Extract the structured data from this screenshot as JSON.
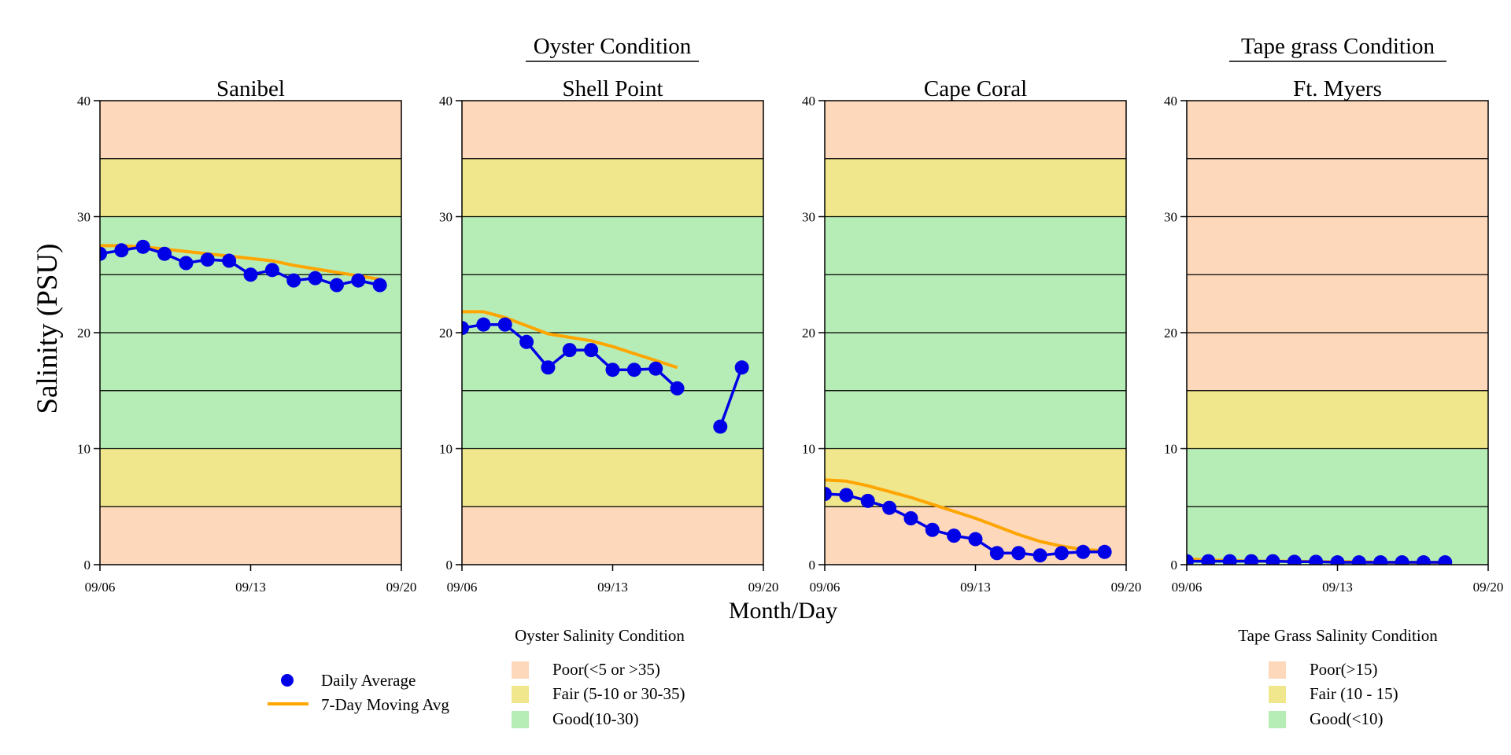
{
  "figure": {
    "ylabel": "Salinity (PSU)",
    "xlabel": "Month/Day",
    "group_titles": {
      "oyster": "Oyster Condition",
      "tape": "Tape grass Condition"
    }
  },
  "colors": {
    "poor": "#fdd8bb",
    "fair": "#f0e68c",
    "good": "#b6edb6",
    "daily": "#0000e6",
    "moving": "#ffa500"
  },
  "chart_data": [
    {
      "type": "line",
      "title": "Sanibel",
      "ylim": [
        0,
        40
      ],
      "yticks": [
        0,
        10,
        20,
        30,
        40
      ],
      "xlim": [
        "09/06",
        "09/20"
      ],
      "xticks": [
        "09/06",
        "09/13",
        "09/20"
      ],
      "bands": [
        {
          "from": 0,
          "to": 5,
          "condition": "poor"
        },
        {
          "from": 5,
          "to": 10,
          "condition": "fair"
        },
        {
          "from": 10,
          "to": 30,
          "condition": "good"
        },
        {
          "from": 30,
          "to": 35,
          "condition": "fair"
        },
        {
          "from": 35,
          "to": 40,
          "condition": "poor"
        }
      ],
      "series": [
        {
          "name": "Daily Average",
          "x": [
            "09/06",
            "09/07",
            "09/08",
            "09/09",
            "09/10",
            "09/11",
            "09/12",
            "09/13",
            "09/14",
            "09/15",
            "09/16",
            "09/17",
            "09/18",
            "09/19"
          ],
          "y": [
            26.8,
            27.1,
            27.4,
            26.8,
            26.0,
            26.3,
            26.2,
            25.0,
            25.4,
            24.5,
            24.7,
            24.1,
            24.5,
            24.1
          ]
        },
        {
          "name": "7-Day Moving Avg",
          "x": [
            "09/06",
            "09/07",
            "09/08",
            "09/09",
            "09/10",
            "09/11",
            "09/12",
            "09/13",
            "09/14",
            "09/15",
            "09/16",
            "09/17",
            "09/18",
            "09/19"
          ],
          "y": [
            27.5,
            27.5,
            27.4,
            27.2,
            27.0,
            26.8,
            26.6,
            26.4,
            26.2,
            25.8,
            25.5,
            25.2,
            24.9,
            24.6
          ]
        }
      ]
    },
    {
      "type": "line",
      "title": "Shell Point",
      "ylim": [
        0,
        40
      ],
      "yticks": [
        0,
        10,
        20,
        30,
        40
      ],
      "xlim": [
        "09/06",
        "09/20"
      ],
      "xticks": [
        "09/06",
        "09/13",
        "09/20"
      ],
      "bands": [
        {
          "from": 0,
          "to": 5,
          "condition": "poor"
        },
        {
          "from": 5,
          "to": 10,
          "condition": "fair"
        },
        {
          "from": 10,
          "to": 30,
          "condition": "good"
        },
        {
          "from": 30,
          "to": 35,
          "condition": "fair"
        },
        {
          "from": 35,
          "to": 40,
          "condition": "poor"
        }
      ],
      "series": [
        {
          "name": "Daily Average",
          "x": [
            "09/06",
            "09/07",
            "09/08",
            "09/09",
            "09/10",
            "09/11",
            "09/12",
            "09/13",
            "09/14",
            "09/15",
            "09/16",
            "09/18",
            "09/19"
          ],
          "y": [
            20.4,
            20.7,
            20.7,
            19.2,
            17.0,
            18.5,
            18.5,
            16.8,
            16.8,
            16.9,
            15.2,
            11.9,
            17.0
          ],
          "segments": [
            [
              0,
              10
            ],
            [
              11,
              12
            ]
          ]
        },
        {
          "name": "7-Day Moving Avg",
          "x": [
            "09/06",
            "09/07",
            "09/08",
            "09/09",
            "09/10",
            "09/11",
            "09/12",
            "09/13",
            "09/14",
            "09/15",
            "09/16"
          ],
          "y": [
            21.8,
            21.8,
            21.3,
            20.6,
            19.9,
            19.6,
            19.3,
            18.8,
            18.2,
            17.6,
            17.0
          ]
        }
      ]
    },
    {
      "type": "line",
      "title": "Cape Coral",
      "ylim": [
        0,
        40
      ],
      "yticks": [
        0,
        10,
        20,
        30,
        40
      ],
      "xlim": [
        "09/06",
        "09/20"
      ],
      "xticks": [
        "09/06",
        "09/13",
        "09/20"
      ],
      "bands": [
        {
          "from": 0,
          "to": 5,
          "condition": "poor"
        },
        {
          "from": 5,
          "to": 10,
          "condition": "fair"
        },
        {
          "from": 10,
          "to": 30,
          "condition": "good"
        },
        {
          "from": 30,
          "to": 35,
          "condition": "fair"
        },
        {
          "from": 35,
          "to": 40,
          "condition": "poor"
        }
      ],
      "series": [
        {
          "name": "Daily Average",
          "x": [
            "09/06",
            "09/07",
            "09/08",
            "09/09",
            "09/10",
            "09/11",
            "09/12",
            "09/13",
            "09/14",
            "09/15",
            "09/16",
            "09/17",
            "09/18",
            "09/19"
          ],
          "y": [
            6.1,
            6.0,
            5.5,
            4.9,
            4.0,
            3.0,
            2.5,
            2.2,
            1.0,
            1.0,
            0.8,
            1.0,
            1.1,
            1.1
          ]
        },
        {
          "name": "7-Day Moving Avg",
          "x": [
            "09/06",
            "09/07",
            "09/08",
            "09/09",
            "09/10",
            "09/11",
            "09/12",
            "09/13",
            "09/14",
            "09/15",
            "09/16",
            "09/17",
            "09/18",
            "09/19"
          ],
          "y": [
            7.3,
            7.2,
            6.8,
            6.3,
            5.8,
            5.2,
            4.6,
            4.0,
            3.3,
            2.6,
            2.0,
            1.6,
            1.3,
            1.2
          ]
        }
      ]
    },
    {
      "type": "line",
      "title": "Ft. Myers",
      "ylim": [
        0,
        40
      ],
      "yticks": [
        0,
        10,
        20,
        30,
        40
      ],
      "xlim": [
        "09/06",
        "09/20"
      ],
      "xticks": [
        "09/06",
        "09/13",
        "09/20"
      ],
      "bands": [
        {
          "from": 0,
          "to": 10,
          "condition": "good"
        },
        {
          "from": 10,
          "to": 15,
          "condition": "fair"
        },
        {
          "from": 15,
          "to": 40,
          "condition": "poor"
        }
      ],
      "series": [
        {
          "name": "Daily Average",
          "x": [
            "09/06",
            "09/07",
            "09/08",
            "09/09",
            "09/10",
            "09/11",
            "09/12",
            "09/13",
            "09/14",
            "09/15",
            "09/16",
            "09/17",
            "09/18"
          ],
          "y": [
            0.3,
            0.3,
            0.3,
            0.3,
            0.3,
            0.25,
            0.25,
            0.2,
            0.2,
            0.2,
            0.2,
            0.2,
            0.2
          ]
        },
        {
          "name": "7-Day Moving Avg",
          "x": [
            "09/06",
            "09/07",
            "09/08",
            "09/09",
            "09/10",
            "09/11",
            "09/12",
            "09/13",
            "09/14",
            "09/15",
            "09/16",
            "09/17",
            "09/18"
          ],
          "y": [
            0.5,
            0.4,
            0.35,
            0.3,
            0.3,
            0.3,
            0.25,
            0.25,
            0.25,
            0.2,
            0.2,
            0.2,
            0.2
          ]
        }
      ]
    }
  ],
  "legend": {
    "series": [
      {
        "label": "Daily Average",
        "kind": "marker"
      },
      {
        "label": "7-Day Moving Avg",
        "kind": "line"
      }
    ],
    "oyster": {
      "title": "Oyster Salinity Condition",
      "items": [
        {
          "label": "Poor(<5 or >35)",
          "condition": "poor"
        },
        {
          "label": "Fair (5-10 or 30-35)",
          "condition": "fair"
        },
        {
          "label": "Good(10-30)",
          "condition": "good"
        }
      ]
    },
    "tape": {
      "title": "Tape Grass Salinity Condition",
      "items": [
        {
          "label": "Poor(>15)",
          "condition": "poor"
        },
        {
          "label": "Fair (10 - 15)",
          "condition": "fair"
        },
        {
          "label": "Good(<10)",
          "condition": "good"
        }
      ]
    }
  }
}
